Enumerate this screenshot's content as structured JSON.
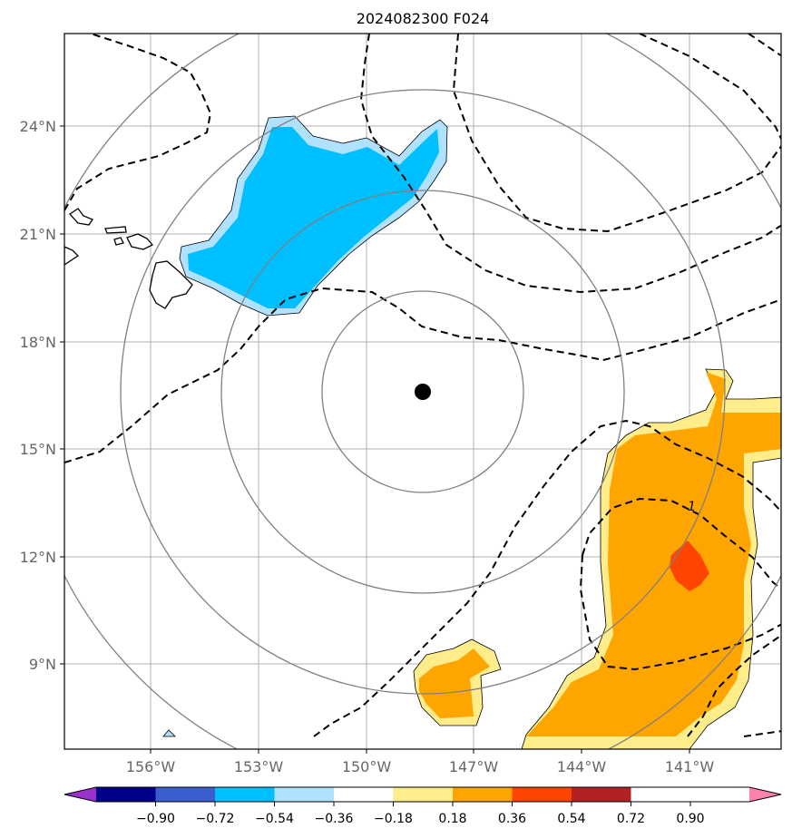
{
  "title": "2024082300 F024",
  "latitude_labels": [
    "24°N",
    "21°N",
    "18°N",
    "15°N",
    "12°N",
    "9°N"
  ],
  "longitude_labels": [
    "156°W",
    "153°W",
    "150°W",
    "147°W",
    "144°W",
    "141°W"
  ],
  "contour_label": "1",
  "colorbar": {
    "tick_labels": [
      "−0.90",
      "−0.72",
      "−0.54",
      "−0.36",
      "−0.18",
      "0.18",
      "0.36",
      "0.54",
      "0.72",
      "0.90"
    ],
    "colors": [
      "#9932cc",
      "#00008b",
      "#3a5fcd",
      "#00bfff",
      "#b0e2ff",
      "#ffffff",
      "#ffec8b",
      "#ffa500",
      "#ff4500",
      "#b22222",
      "#ff82ab"
    ]
  },
  "colors": {
    "negative_fill": "#00bfff",
    "negative_edge": "#b0e2ff",
    "positive_fill": "#ffa500",
    "positive_edge": "#ffec8b",
    "positive_peak": "#ff4500",
    "grid": "#b0b0b0",
    "range_rings": "#808080"
  }
}
